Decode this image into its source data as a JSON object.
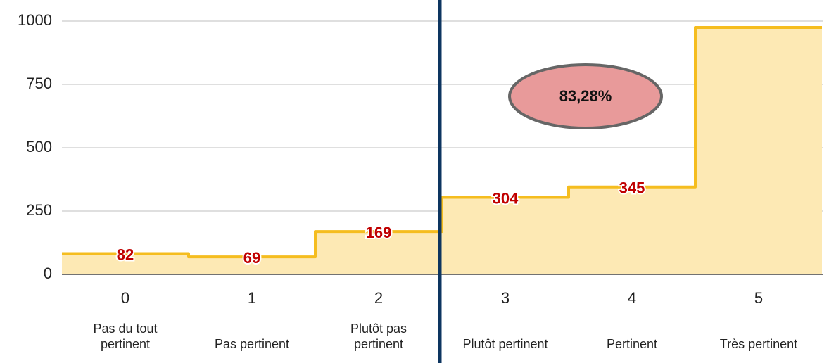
{
  "chart_data": {
    "type": "step",
    "categories": [
      "0",
      "1",
      "2",
      "3",
      "4",
      "5"
    ],
    "category_descriptions": [
      "Pas du tout pertinent",
      "Pas pertinent",
      "Plutôt pas pertinent",
      "Plutôt pertinent",
      "Pertinent",
      "Très pertinent"
    ],
    "values": [
      82,
      69,
      169,
      304,
      345,
      975
    ],
    "value_labels": [
      "82",
      "69",
      "169",
      "304",
      "345",
      null
    ],
    "color": "#f5bd1f",
    "area_color": "#fde9b4",
    "label_color": "#c00000",
    "ylim": [
      0,
      1000
    ],
    "yticks": [
      0,
      250,
      500,
      750,
      1000
    ],
    "grid": true,
    "annotation": "83,28%",
    "divider_color": "#0d3560"
  }
}
